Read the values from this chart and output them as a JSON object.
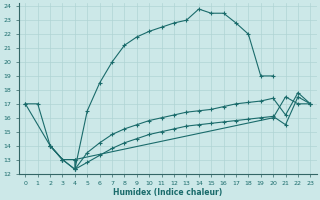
{
  "xlabel": "Humidex (Indice chaleur)",
  "bg_color": "#cce8e8",
  "line_color": "#1a6b6b",
  "grid_color": "#b0d4d4",
  "xlim": [
    -0.5,
    23.5
  ],
  "ylim": [
    12,
    24.2
  ],
  "xticks": [
    0,
    1,
    2,
    3,
    4,
    5,
    6,
    7,
    8,
    9,
    10,
    11,
    12,
    13,
    14,
    15,
    16,
    17,
    18,
    19,
    20,
    21,
    22,
    23
  ],
  "yticks": [
    12,
    13,
    14,
    15,
    16,
    17,
    18,
    19,
    20,
    21,
    22,
    23,
    24
  ],
  "line1_x": [
    0,
    1,
    2,
    3,
    4,
    4,
    5,
    6,
    7,
    8,
    9,
    10,
    11,
    12,
    13,
    14,
    15,
    16,
    17,
    18,
    19,
    20
  ],
  "line1_y": [
    17,
    17,
    14,
    13,
    13,
    12.3,
    16.5,
    18.5,
    20.0,
    21.2,
    21.8,
    22.2,
    22.5,
    22.8,
    23.0,
    23.8,
    23.5,
    23.5,
    22.8,
    22.0,
    19.0,
    19.0
  ],
  "line2_x": [
    0,
    2,
    3,
    4,
    20,
    21,
    22,
    23
  ],
  "line2_y": [
    17,
    14,
    13,
    13,
    16.0,
    17.5,
    17.0,
    17.0
  ],
  "line3_x": [
    2,
    3,
    4,
    5,
    6,
    7,
    8,
    9,
    10,
    11,
    12,
    13,
    14,
    15,
    16,
    17,
    18,
    19,
    20,
    21,
    22,
    23
  ],
  "line3_y": [
    14,
    13,
    12.3,
    13.5,
    14.2,
    14.8,
    15.2,
    15.5,
    15.8,
    16.0,
    16.2,
    16.4,
    16.5,
    16.6,
    16.8,
    17.0,
    17.1,
    17.2,
    17.4,
    16.2,
    17.8,
    17.0
  ],
  "line4_x": [
    2,
    3,
    4,
    5,
    6,
    7,
    8,
    9,
    10,
    11,
    12,
    13,
    14,
    15,
    16,
    17,
    18,
    19,
    20,
    21,
    22,
    23
  ],
  "line4_y": [
    14,
    13,
    12.3,
    12.8,
    13.3,
    13.8,
    14.2,
    14.5,
    14.8,
    15.0,
    15.2,
    15.4,
    15.5,
    15.6,
    15.7,
    15.8,
    15.9,
    16.0,
    16.1,
    15.5,
    17.5,
    17.0
  ]
}
